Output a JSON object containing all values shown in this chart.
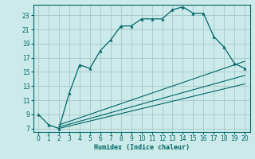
{
  "xlabel": "Humidex (Indice chaleur)",
  "bg_color": "#cceaea",
  "grid_color": "#aacccc",
  "line_color": "#006666",
  "xlim": [
    -0.5,
    20.5
  ],
  "ylim": [
    6.5,
    24.5
  ],
  "xticks": [
    0,
    1,
    2,
    3,
    4,
    5,
    6,
    7,
    8,
    9,
    10,
    11,
    12,
    13,
    14,
    15,
    16,
    17,
    18,
    19,
    20
  ],
  "yticks": [
    7,
    9,
    11,
    13,
    15,
    17,
    19,
    21,
    23
  ],
  "main_x": [
    0,
    1,
    2,
    3,
    4,
    5,
    6,
    7,
    8,
    9,
    10,
    11,
    12,
    13,
    14,
    15,
    16,
    17,
    18,
    19,
    20
  ],
  "main_y": [
    9,
    7.5,
    7,
    12,
    16,
    15.5,
    18,
    19.5,
    21.5,
    21.5,
    22.5,
    22.5,
    22.5,
    23.8,
    24.2,
    23.3,
    23.3,
    20,
    18.5,
    16.2,
    15.5
  ],
  "line2_x": [
    2,
    20
  ],
  "line2_y": [
    7.5,
    16.5
  ],
  "line3_x": [
    2,
    20
  ],
  "line3_y": [
    7.2,
    14.5
  ],
  "line4_x": [
    2,
    20
  ],
  "line4_y": [
    7.0,
    13.3
  ]
}
